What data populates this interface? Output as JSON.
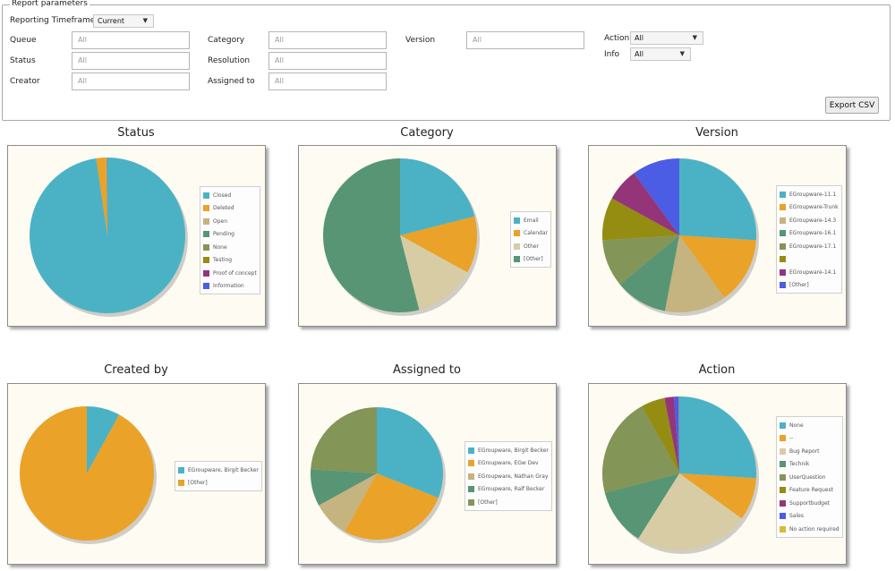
{
  "report_parameters": {
    "legend": "Report parameters",
    "timeframe_label": "Reporting Timeframe",
    "timeframe_value": "Current",
    "queue_label": "Queue",
    "queue_placeholder": "All",
    "status_label": "Status",
    "status_placeholder": "All",
    "creator_label": "Creator",
    "creator_placeholder": "All",
    "category_label": "Category",
    "category_placeholder": "All",
    "resolution_label": "Resolution",
    "resolution_placeholder": "All",
    "assigned_label": "Assigned to",
    "assigned_placeholder": "All",
    "version_label": "Version",
    "version_placeholder": "All",
    "action_label": "Action",
    "action_value": "All",
    "info_label": "Info",
    "info_value": "All",
    "export_label": "Export CSV"
  },
  "chart_data": [
    {
      "type": "pie",
      "title": "Status",
      "labels": [
        "Closed",
        "Deleted",
        "Open",
        "Pending",
        "None",
        "Testing",
        "Proof of concept",
        "Information"
      ],
      "values": [
        97.7,
        2.0,
        0.1,
        0.05,
        0.05,
        0.05,
        0.03,
        0.02
      ],
      "colors": [
        "#4bb2c5",
        "#eaa228",
        "#c5b47f",
        "#579575",
        "#839557",
        "#958c12",
        "#953579",
        "#4b5de4"
      ],
      "start_angle": 90,
      "legend_position": "right"
    },
    {
      "type": "pie",
      "title": "Category",
      "labels": [
        "Email",
        "Calendar",
        "Other",
        "[Other]"
      ],
      "values": [
        21,
        12,
        13,
        54
      ],
      "colors": [
        "#4bb2c5",
        "#eaa228",
        "#d8cca5",
        "#579575"
      ],
      "start_angle": 90,
      "legend_position": "right"
    },
    {
      "type": "pie",
      "title": "Version",
      "labels": [
        "EGroupware-11.1",
        "EGroupware-Trunk",
        "EGroupware-14.3",
        "EGroupware-16.1",
        "EGroupware-17.1",
        "",
        "EGroupware-14.1",
        "[Other]"
      ],
      "values": [
        26,
        14,
        13,
        11,
        10,
        9,
        7,
        10
      ],
      "colors": [
        "#4bb2c5",
        "#eaa228",
        "#c5b47f",
        "#579575",
        "#839557",
        "#958c12",
        "#953579",
        "#4b5de4"
      ],
      "start_angle": 90,
      "legend_position": "right"
    },
    {
      "type": "pie",
      "title": "Created by",
      "labels": [
        "EGroupware, Birgit Becker",
        "[Other]"
      ],
      "values": [
        8,
        92
      ],
      "colors": [
        "#4bb2c5",
        "#eaa228"
      ],
      "start_angle": 90,
      "legend_position": "right"
    },
    {
      "type": "pie",
      "title": "Assigned to",
      "labels": [
        "EGroupware, Birgit Becker",
        "EGroupware, EGw Dev",
        "EGroupware, Nathan Gray",
        "EGroupware, Ralf Becker",
        "[Other]"
      ],
      "values": [
        31,
        27,
        9,
        9,
        24
      ],
      "colors": [
        "#4bb2c5",
        "#eaa228",
        "#c5b47f",
        "#579575",
        "#839557"
      ],
      "start_angle": 90,
      "legend_position": "right"
    },
    {
      "type": "pie",
      "title": "Action",
      "labels": [
        "None",
        "--",
        "Bug Report",
        "Technik",
        "UserQuestion",
        "Feature Request",
        "Supportbudget",
        "Sales",
        "No action required"
      ],
      "values": [
        26,
        9,
        24,
        12,
        21,
        5,
        2,
        1,
        0.1
      ],
      "colors": [
        "#4bb2c5",
        "#eaa228",
        "#d8cca5",
        "#579575",
        "#839557",
        "#958c12",
        "#953579",
        "#4b5de4",
        "#d8b83f"
      ],
      "start_angle": 90,
      "legend_position": "right"
    }
  ]
}
